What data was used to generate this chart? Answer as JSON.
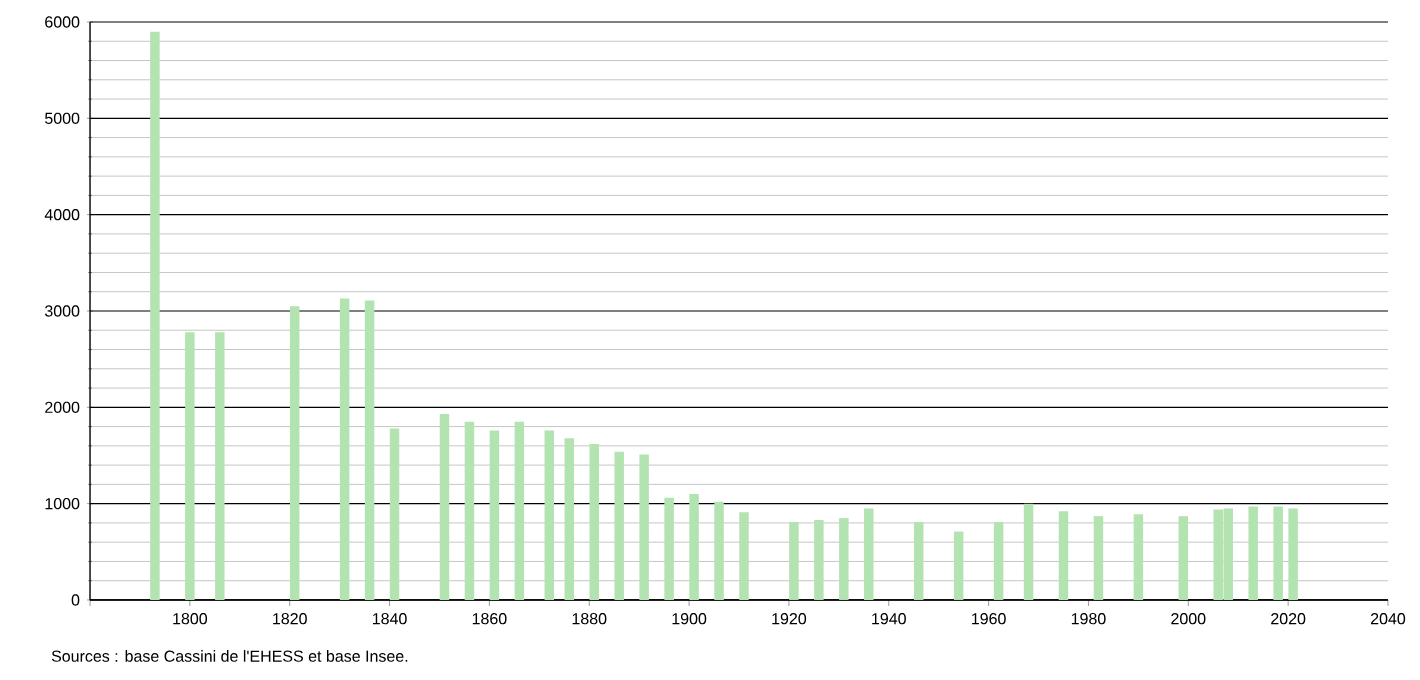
{
  "chart_data": {
    "type": "bar",
    "x": [
      1793,
      1800,
      1806,
      1821,
      1831,
      1836,
      1841,
      1851,
      1856,
      1861,
      1866,
      1872,
      1876,
      1881,
      1886,
      1891,
      1896,
      1901,
      1906,
      1911,
      1921,
      1926,
      1931,
      1936,
      1946,
      1954,
      1962,
      1968,
      1975,
      1982,
      1990,
      1999,
      2006,
      2008,
      2013,
      2018,
      2021
    ],
    "values": [
      5900,
      2780,
      2780,
      3050,
      3130,
      3110,
      1780,
      1930,
      1850,
      1760,
      1850,
      1760,
      1680,
      1620,
      1540,
      1510,
      1060,
      1100,
      1020,
      910,
      810,
      830,
      850,
      950,
      810,
      710,
      810,
      1000,
      920,
      870,
      890,
      870,
      940,
      950,
      970,
      970,
      950
    ],
    "color": "#b3e3b1",
    "xlim": [
      1780,
      2040
    ],
    "xticks": [
      {
        "value": 1780,
        "label": null
      },
      1800,
      1820,
      1840,
      1860,
      1880,
      1900,
      1920,
      1940,
      1960,
      1980,
      2000,
      2020,
      2040
    ],
    "ylim": [
      0,
      6000
    ],
    "yticks": [
      0,
      1000,
      2000,
      3000,
      4000,
      5000,
      6000
    ],
    "grid": "y",
    "annotations": [
      "Sources : base Cassini de l'EHESS et base Insee."
    ]
  }
}
